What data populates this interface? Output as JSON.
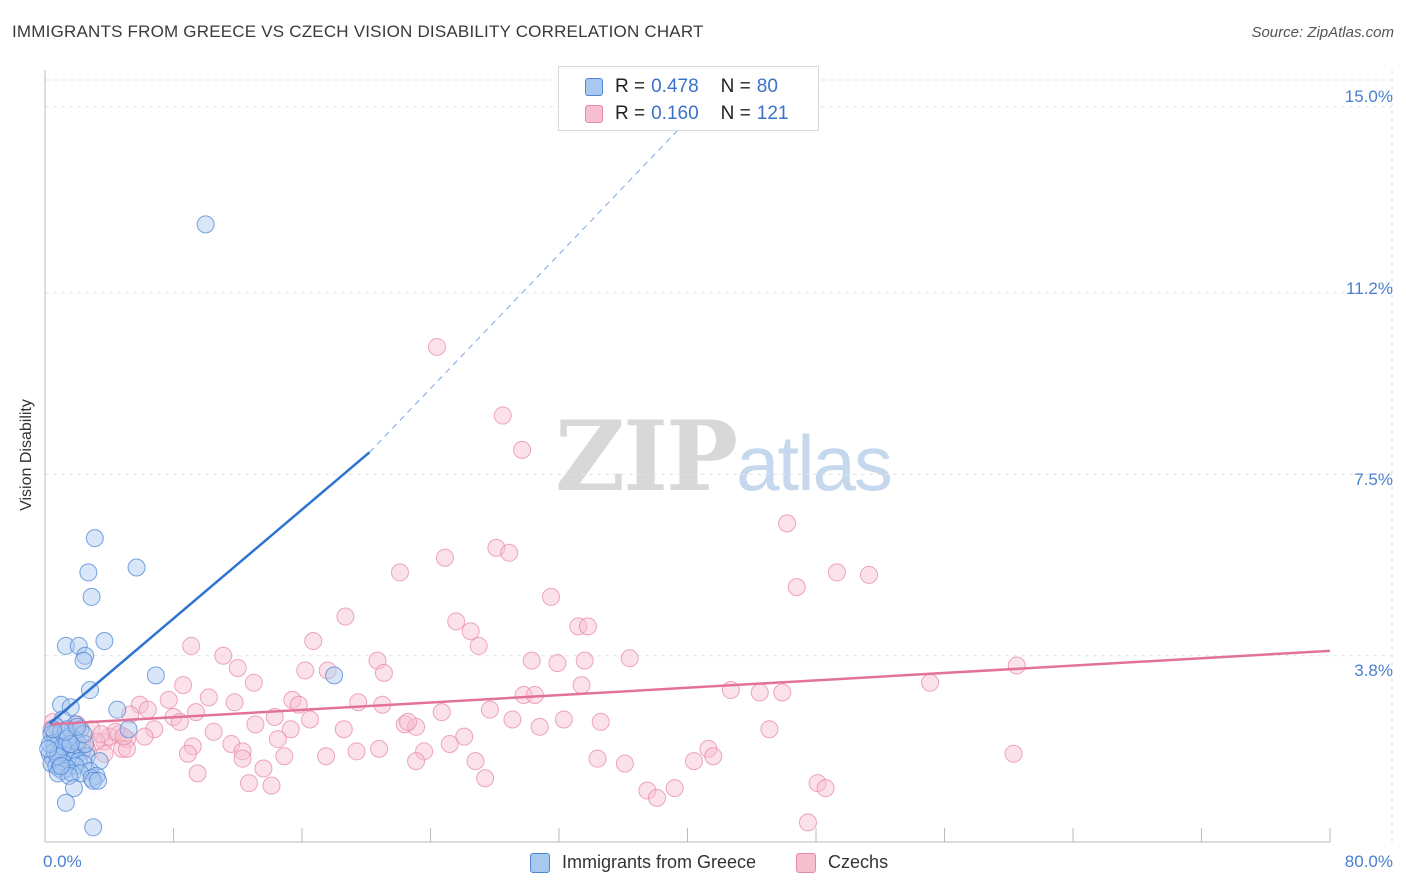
{
  "title": "IMMIGRANTS FROM GREECE VS CZECH VISION DISABILITY CORRELATION CHART",
  "source": "Source: ZipAtlas.com",
  "watermark": {
    "zip": "ZIP",
    "atlas": "atlas"
  },
  "legend": {
    "rows": [
      {
        "r_label": "R = ",
        "r_value": "0.478",
        "n_label": "N = ",
        "n_value": "80"
      },
      {
        "r_label": "R = ",
        "r_value": "0.160",
        "n_label": "N = ",
        "n_value": "121"
      }
    ]
  },
  "bottom_legend": [
    "Immigrants from Greece",
    "Czechs"
  ],
  "colors": {
    "blue_fill": "#a8c8f0",
    "blue_stroke": "#4f86d6",
    "blue_line": "#2f73d0",
    "pink_fill": "#f6bfd0",
    "pink_stroke": "#e88aa7",
    "pink_line": "#e3729a",
    "tick_text": "#4a7fd0",
    "grid": "#e3e3e3"
  },
  "chart_data": {
    "type": "scatter",
    "title": "IMMIGRANTS FROM GREECE VS CZECH VISION DISABILITY CORRELATION CHART",
    "xlabel": "",
    "ylabel": "Vision Disability",
    "xlim": [
      0,
      80
    ],
    "ylim": [
      0,
      15.75
    ],
    "x_tick_labels": [
      "0.0%",
      "80.0%"
    ],
    "y_ticks": [
      3.8,
      7.5,
      11.2,
      15.0
    ],
    "y_tick_labels": [
      "3.8%",
      "7.5%",
      "11.2%",
      "15.0%"
    ],
    "grid": true,
    "legend_position": "top-center",
    "series": [
      {
        "name": "Immigrants from Greece",
        "R": 0.478,
        "N": 80,
        "trend": {
          "x0": 0.3,
          "y0": 2.42,
          "x1": 20.2,
          "y1": 7.95,
          "dashed_to_x": 40.5,
          "dashed_to_y": 14.9
        },
        "points": [
          [
            10.0,
            12.6
          ],
          [
            3.1,
            6.2
          ],
          [
            5.7,
            5.6
          ],
          [
            2.7,
            5.5
          ],
          [
            2.9,
            5.0
          ],
          [
            3.7,
            4.1
          ],
          [
            1.3,
            4.0
          ],
          [
            2.1,
            4.0
          ],
          [
            2.5,
            3.8
          ],
          [
            2.4,
            3.7
          ],
          [
            6.9,
            3.4
          ],
          [
            18.0,
            3.4
          ],
          [
            2.8,
            3.1
          ],
          [
            1.0,
            2.8
          ],
          [
            4.5,
            2.7
          ],
          [
            1.6,
            2.75
          ],
          [
            1.1,
            2.5
          ],
          [
            1.9,
            2.4
          ],
          [
            0.7,
            2.35
          ],
          [
            1.4,
            2.3
          ],
          [
            0.4,
            2.2
          ],
          [
            5.2,
            2.3
          ],
          [
            2.2,
            2.3
          ],
          [
            1.8,
            2.1
          ],
          [
            0.5,
            2.0
          ],
          [
            0.8,
            2.1
          ],
          [
            1.2,
            2.0
          ],
          [
            0.6,
            1.95
          ],
          [
            1.5,
            1.95
          ],
          [
            0.9,
            1.9
          ],
          [
            2.0,
            1.9
          ],
          [
            2.3,
            1.85
          ],
          [
            1.7,
            1.85
          ],
          [
            0.3,
            1.8
          ],
          [
            1.3,
            1.8
          ],
          [
            1.9,
            1.75
          ],
          [
            0.5,
            1.7
          ],
          [
            2.6,
            1.75
          ],
          [
            1.0,
            1.7
          ],
          [
            1.6,
            1.65
          ],
          [
            2.1,
            1.65
          ],
          [
            0.4,
            1.6
          ],
          [
            1.2,
            1.6
          ],
          [
            3.4,
            1.65
          ],
          [
            2.4,
            1.6
          ],
          [
            0.7,
            1.55
          ],
          [
            1.9,
            1.55
          ],
          [
            0.9,
            1.5
          ],
          [
            1.4,
            1.5
          ],
          [
            1.1,
            1.45
          ],
          [
            2.8,
            1.45
          ],
          [
            0.8,
            1.4
          ],
          [
            1.7,
            1.4
          ],
          [
            2.2,
            1.4
          ],
          [
            3.2,
            1.35
          ],
          [
            1.5,
            1.35
          ],
          [
            2.9,
            1.3
          ],
          [
            3.0,
            1.25
          ],
          [
            3.3,
            1.25
          ],
          [
            1.8,
            1.1
          ],
          [
            1.3,
            0.8
          ],
          [
            3.0,
            0.3
          ],
          [
            0.6,
            2.2
          ],
          [
            1.0,
            2.25
          ],
          [
            1.5,
            2.15
          ],
          [
            2.0,
            2.05
          ],
          [
            0.9,
            2.05
          ],
          [
            1.4,
            2.1
          ],
          [
            0.6,
            1.85
          ],
          [
            2.5,
            2.0
          ],
          [
            1.1,
            1.95
          ],
          [
            0.8,
            1.75
          ],
          [
            1.6,
            2.0
          ],
          [
            0.3,
            2.0
          ],
          [
            0.2,
            1.9
          ],
          [
            2.4,
            2.2
          ],
          [
            1.0,
            1.55
          ],
          [
            1.3,
            2.25
          ],
          [
            2.0,
            2.35
          ],
          [
            0.5,
            2.3
          ]
        ]
      },
      {
        "name": "Czechs",
        "R": 0.16,
        "N": 121,
        "trend": {
          "x0": 0.3,
          "y0": 2.4,
          "x1": 80.0,
          "y1": 3.9
        },
        "points": [
          [
            24.4,
            10.1
          ],
          [
            28.5,
            8.7
          ],
          [
            29.7,
            8.0
          ],
          [
            46.2,
            6.5
          ],
          [
            28.1,
            6.0
          ],
          [
            24.9,
            5.8
          ],
          [
            22.1,
            5.5
          ],
          [
            49.3,
            5.5
          ],
          [
            46.8,
            5.2
          ],
          [
            31.5,
            5.0
          ],
          [
            18.7,
            4.6
          ],
          [
            25.6,
            4.5
          ],
          [
            33.2,
            4.4
          ],
          [
            16.7,
            4.1
          ],
          [
            27.0,
            4.0
          ],
          [
            9.1,
            4.0
          ],
          [
            11.1,
            3.8
          ],
          [
            30.3,
            3.7
          ],
          [
            33.6,
            3.7
          ],
          [
            20.7,
            3.7
          ],
          [
            31.9,
            3.65
          ],
          [
            12.0,
            3.55
          ],
          [
            17.6,
            3.5
          ],
          [
            16.2,
            3.5
          ],
          [
            21.1,
            3.45
          ],
          [
            60.5,
            3.6
          ],
          [
            13.0,
            3.25
          ],
          [
            33.4,
            3.2
          ],
          [
            8.6,
            3.2
          ],
          [
            55.1,
            3.25
          ],
          [
            42.7,
            3.1
          ],
          [
            45.9,
            3.05
          ],
          [
            29.8,
            3.0
          ],
          [
            30.5,
            3.0
          ],
          [
            10.2,
            2.95
          ],
          [
            15.4,
            2.9
          ],
          [
            7.7,
            2.9
          ],
          [
            19.5,
            2.85
          ],
          [
            5.9,
            2.8
          ],
          [
            11.8,
            2.85
          ],
          [
            15.8,
            2.8
          ],
          [
            21.0,
            2.8
          ],
          [
            6.4,
            2.7
          ],
          [
            9.4,
            2.65
          ],
          [
            24.7,
            2.65
          ],
          [
            27.7,
            2.7
          ],
          [
            5.3,
            2.6
          ],
          [
            8.0,
            2.55
          ],
          [
            14.3,
            2.55
          ],
          [
            16.5,
            2.5
          ],
          [
            29.1,
            2.5
          ],
          [
            32.3,
            2.5
          ],
          [
            34.6,
            2.45
          ],
          [
            8.4,
            2.45
          ],
          [
            13.1,
            2.4
          ],
          [
            22.4,
            2.4
          ],
          [
            23.1,
            2.35
          ],
          [
            30.8,
            2.35
          ],
          [
            6.8,
            2.3
          ],
          [
            15.3,
            2.3
          ],
          [
            18.6,
            2.3
          ],
          [
            45.1,
            2.3
          ],
          [
            10.5,
            2.25
          ],
          [
            4.6,
            2.2
          ],
          [
            6.2,
            2.15
          ],
          [
            5.1,
            2.1
          ],
          [
            14.5,
            2.1
          ],
          [
            26.1,
            2.15
          ],
          [
            3.7,
            2.05
          ],
          [
            25.2,
            2.0
          ],
          [
            11.6,
            2.0
          ],
          [
            9.2,
            1.95
          ],
          [
            4.8,
            1.9
          ],
          [
            5.1,
            1.9
          ],
          [
            20.8,
            1.9
          ],
          [
            41.3,
            1.9
          ],
          [
            19.4,
            1.85
          ],
          [
            12.3,
            1.85
          ],
          [
            23.6,
            1.85
          ],
          [
            3.7,
            1.8
          ],
          [
            8.9,
            1.8
          ],
          [
            17.5,
            1.75
          ],
          [
            14.9,
            1.75
          ],
          [
            41.6,
            1.75
          ],
          [
            34.4,
            1.7
          ],
          [
            40.4,
            1.65
          ],
          [
            60.3,
            1.8
          ],
          [
            12.3,
            1.7
          ],
          [
            23.1,
            1.65
          ],
          [
            26.8,
            1.65
          ],
          [
            36.1,
            1.6
          ],
          [
            13.6,
            1.5
          ],
          [
            9.5,
            1.4
          ],
          [
            27.4,
            1.3
          ],
          [
            12.7,
            1.2
          ],
          [
            14.1,
            1.15
          ],
          [
            39.2,
            1.1
          ],
          [
            37.5,
            1.05
          ],
          [
            48.1,
            1.2
          ],
          [
            48.6,
            1.1
          ],
          [
            38.1,
            0.9
          ],
          [
            47.5,
            0.4
          ],
          [
            2.0,
            2.4
          ],
          [
            2.9,
            2.3
          ],
          [
            1.7,
            2.1
          ],
          [
            4.0,
            2.15
          ],
          [
            3.2,
            2.05
          ],
          [
            1.3,
            2.0
          ],
          [
            2.3,
            1.95
          ],
          [
            4.4,
            2.25
          ],
          [
            0.5,
            2.45
          ],
          [
            0.8,
            2.25
          ],
          [
            1.0,
            2.05
          ],
          [
            3.5,
            2.2
          ],
          [
            2.6,
            1.9
          ],
          [
            0.4,
            2.3
          ],
          [
            4.9,
            2.15
          ],
          [
            1.9,
            2.2
          ],
          [
            22.6,
            2.45
          ],
          [
            36.4,
            3.75
          ],
          [
            26.5,
            4.3
          ],
          [
            28.9,
            5.9
          ],
          [
            33.8,
            4.4
          ],
          [
            51.3,
            5.45
          ],
          [
            44.5,
            3.05
          ]
        ]
      }
    ]
  }
}
